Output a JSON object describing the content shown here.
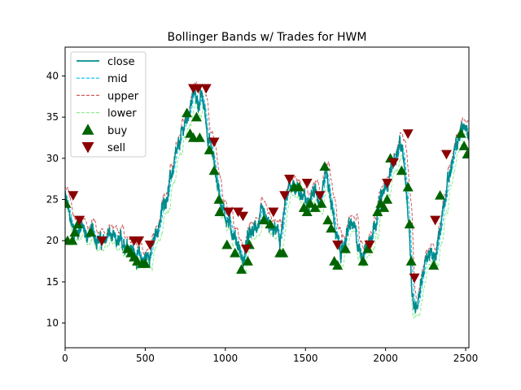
{
  "chart_data": {
    "type": "line",
    "title": "Bollinger Bands w/ Trades for HWM",
    "xlabel": "",
    "ylabel": "",
    "xlim": [
      0,
      2520
    ],
    "ylim": [
      7,
      43.5
    ],
    "xticks": [
      0,
      500,
      1000,
      1500,
      2000,
      2500
    ],
    "yticks": [
      10,
      15,
      20,
      25,
      30,
      35,
      40
    ],
    "legend_position": "upper-left",
    "grid": false,
    "close_anchors": [
      [
        0,
        25.5
      ],
      [
        25,
        23
      ],
      [
        50,
        21.5
      ],
      [
        75,
        21
      ],
      [
        100,
        22
      ],
      [
        130,
        20.5
      ],
      [
        160,
        21
      ],
      [
        200,
        20.5
      ],
      [
        240,
        19.5
      ],
      [
        270,
        21
      ],
      [
        300,
        20
      ],
      [
        330,
        19.5
      ],
      [
        370,
        20
      ],
      [
        400,
        19.5
      ],
      [
        430,
        18.5
      ],
      [
        460,
        18
      ],
      [
        490,
        17.8
      ],
      [
        520,
        18.2
      ],
      [
        550,
        19.5
      ],
      [
        580,
        21.5
      ],
      [
        610,
        24
      ],
      [
        640,
        26
      ],
      [
        670,
        28.5
      ],
      [
        700,
        30.5
      ],
      [
        730,
        33
      ],
      [
        760,
        35
      ],
      [
        790,
        37
      ],
      [
        810,
        38
      ],
      [
        830,
        36.5
      ],
      [
        850,
        37.5
      ],
      [
        870,
        36
      ],
      [
        890,
        33
      ],
      [
        910,
        31.5
      ],
      [
        930,
        29.5
      ],
      [
        950,
        27
      ],
      [
        970,
        25
      ],
      [
        990,
        23.5
      ],
      [
        1010,
        22.5
      ],
      [
        1030,
        22
      ],
      [
        1050,
        21
      ],
      [
        1070,
        20
      ],
      [
        1090,
        19
      ],
      [
        1110,
        17
      ],
      [
        1130,
        19.5
      ],
      [
        1150,
        20.5
      ],
      [
        1170,
        21
      ],
      [
        1200,
        22
      ],
      [
        1230,
        23
      ],
      [
        1260,
        22
      ],
      [
        1290,
        21
      ],
      [
        1310,
        21.5
      ],
      [
        1340,
        20
      ],
      [
        1360,
        22
      ],
      [
        1380,
        25
      ],
      [
        1400,
        26.5
      ],
      [
        1430,
        27
      ],
      [
        1460,
        26
      ],
      [
        1490,
        25
      ],
      [
        1510,
        24.5
      ],
      [
        1530,
        26
      ],
      [
        1560,
        26
      ],
      [
        1590,
        25
      ],
      [
        1610,
        27
      ],
      [
        1630,
        28.5
      ],
      [
        1650,
        26
      ],
      [
        1670,
        23.5
      ],
      [
        1690,
        21
      ],
      [
        1710,
        19
      ],
      [
        1730,
        18.5
      ],
      [
        1750,
        20.5
      ],
      [
        1770,
        21.5
      ],
      [
        1790,
        22
      ],
      [
        1810,
        21
      ],
      [
        1830,
        19
      ],
      [
        1860,
        18.5
      ],
      [
        1890,
        19.5
      ],
      [
        1910,
        21
      ],
      [
        1930,
        22
      ],
      [
        1950,
        23.5
      ],
      [
        1970,
        25
      ],
      [
        1990,
        26
      ],
      [
        2010,
        27
      ],
      [
        2030,
        28.5
      ],
      [
        2050,
        29.5
      ],
      [
        2070,
        30.5
      ],
      [
        2090,
        31.5
      ],
      [
        2110,
        30
      ],
      [
        2130,
        26
      ],
      [
        2150,
        21
      ],
      [
        2165,
        14
      ],
      [
        2180,
        11.5
      ],
      [
        2195,
        12.5
      ],
      [
        2210,
        14
      ],
      [
        2230,
        16
      ],
      [
        2250,
        17.5
      ],
      [
        2270,
        18.5
      ],
      [
        2290,
        18
      ],
      [
        2310,
        17.5
      ],
      [
        2330,
        20
      ],
      [
        2350,
        23
      ],
      [
        2370,
        25.5
      ],
      [
        2390,
        27.5
      ],
      [
        2410,
        29
      ],
      [
        2430,
        30.5
      ],
      [
        2450,
        32
      ],
      [
        2470,
        33.5
      ],
      [
        2490,
        34
      ],
      [
        2510,
        33
      ],
      [
        2520,
        32.5
      ]
    ],
    "series": [
      {
        "name": "close",
        "style": "solid",
        "color": "#008b8b"
      },
      {
        "name": "mid",
        "style": "dashed",
        "color": "#00bfff"
      },
      {
        "name": "upper",
        "style": "dashed",
        "color": "#cd5c5c"
      },
      {
        "name": "lower",
        "style": "dashed",
        "color": "#90ee90"
      }
    ],
    "buy_points": [
      [
        5,
        24.5
      ],
      [
        15,
        20
      ],
      [
        45,
        20
      ],
      [
        60,
        21
      ],
      [
        80,
        22
      ],
      [
        160,
        21
      ],
      [
        390,
        19
      ],
      [
        410,
        18.5
      ],
      [
        430,
        18
      ],
      [
        450,
        17.5
      ],
      [
        480,
        17.2
      ],
      [
        500,
        17.2
      ],
      [
        760,
        35.5
      ],
      [
        780,
        33
      ],
      [
        800,
        32.5
      ],
      [
        820,
        35
      ],
      [
        840,
        32.5
      ],
      [
        900,
        31
      ],
      [
        930,
        28.5
      ],
      [
        960,
        25
      ],
      [
        965,
        23.5
      ],
      [
        1010,
        19.5
      ],
      [
        1060,
        18.5
      ],
      [
        1100,
        16.5
      ],
      [
        1140,
        17.5
      ],
      [
        1150,
        19.5
      ],
      [
        1240,
        22.5
      ],
      [
        1280,
        22
      ],
      [
        1340,
        18.5
      ],
      [
        1360,
        18.5
      ],
      [
        1430,
        26.5
      ],
      [
        1460,
        26.5
      ],
      [
        1490,
        24
      ],
      [
        1510,
        23.5
      ],
      [
        1530,
        24.5
      ],
      [
        1560,
        24
      ],
      [
        1600,
        24.5
      ],
      [
        1620,
        29
      ],
      [
        1640,
        22.5
      ],
      [
        1660,
        21.5
      ],
      [
        1680,
        17.5
      ],
      [
        1700,
        17
      ],
      [
        1750,
        19
      ],
      [
        1860,
        17.5
      ],
      [
        1890,
        19
      ],
      [
        1950,
        23.5
      ],
      [
        1970,
        24.5
      ],
      [
        1990,
        24
      ],
      [
        2010,
        25
      ],
      [
        2030,
        30
      ],
      [
        2100,
        28.5
      ],
      [
        2140,
        26.5
      ],
      [
        2150,
        22
      ],
      [
        2160,
        17.5
      ],
      [
        2300,
        17
      ],
      [
        2340,
        25.5
      ],
      [
        2470,
        33
      ],
      [
        2490,
        31.5
      ],
      [
        2510,
        30.5
      ]
    ],
    "sell_points": [
      [
        50,
        25.5
      ],
      [
        90,
        22.5
      ],
      [
        230,
        20
      ],
      [
        430,
        20
      ],
      [
        460,
        20
      ],
      [
        530,
        19.5
      ],
      [
        800,
        38.5
      ],
      [
        830,
        38.5
      ],
      [
        880,
        38.5
      ],
      [
        930,
        32
      ],
      [
        1020,
        23.5
      ],
      [
        1080,
        23.5
      ],
      [
        1110,
        23
      ],
      [
        1130,
        19
      ],
      [
        1300,
        23.5
      ],
      [
        1370,
        25.5
      ],
      [
        1400,
        27.5
      ],
      [
        1510,
        27
      ],
      [
        1590,
        25.5
      ],
      [
        1700,
        19.5
      ],
      [
        1900,
        19.5
      ],
      [
        2010,
        27
      ],
      [
        2050,
        29.5
      ],
      [
        2140,
        33
      ],
      [
        2180,
        15.5
      ],
      [
        2310,
        22.5
      ],
      [
        2380,
        30.5
      ]
    ],
    "legend": [
      {
        "label": "close",
        "kind": "line",
        "style": "solid",
        "color": "#008b8b"
      },
      {
        "label": "mid",
        "kind": "line",
        "style": "dashed",
        "color": "#00bfff"
      },
      {
        "label": "upper",
        "kind": "line",
        "style": "dashed",
        "color": "#cd5c5c"
      },
      {
        "label": "lower",
        "kind": "line",
        "style": "dashed",
        "color": "#90ee90"
      },
      {
        "label": "buy",
        "kind": "marker",
        "marker": "triangle-up",
        "color": "#006400"
      },
      {
        "label": "sell",
        "kind": "marker",
        "marker": "triangle-down",
        "color": "#8b0000"
      }
    ]
  }
}
